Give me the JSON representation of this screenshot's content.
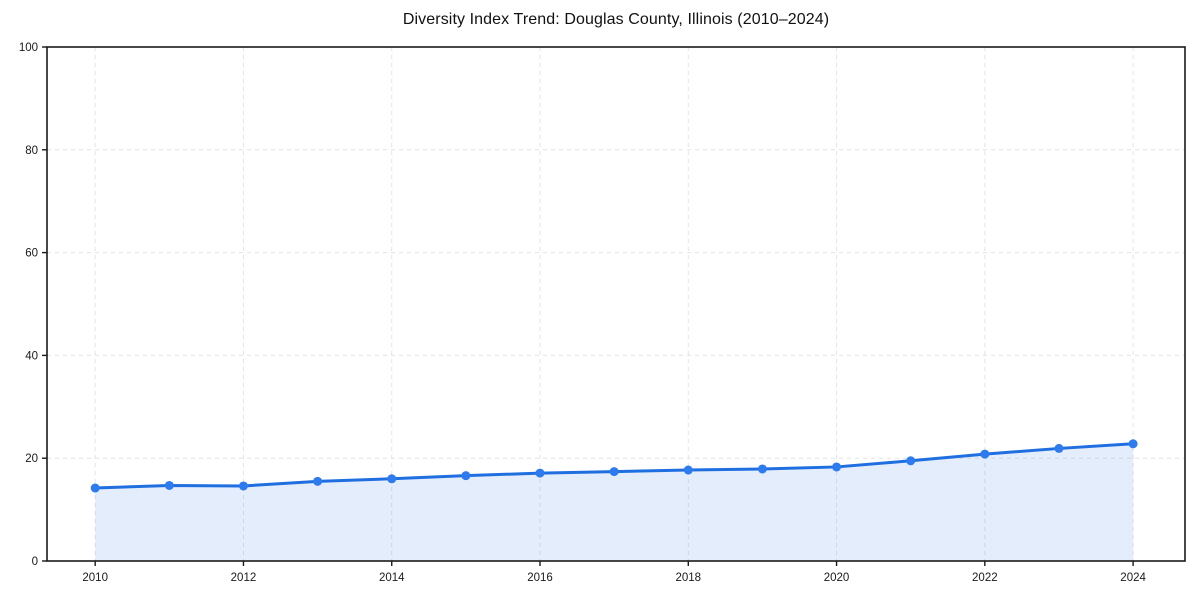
{
  "page": {
    "background_color": "#ffffff"
  },
  "chart_data": {
    "type": "line",
    "title": "Diversity Index Trend: Douglas County, Illinois (2010–2024)",
    "xlabel": "",
    "ylabel": "",
    "x": [
      2010,
      2011,
      2012,
      2013,
      2014,
      2015,
      2016,
      2017,
      2018,
      2019,
      2020,
      2021,
      2022,
      2023,
      2024
    ],
    "series": [
      {
        "name": "Diversity Index",
        "values": [
          14.2,
          14.7,
          14.6,
          15.5,
          16.0,
          16.6,
          17.1,
          17.4,
          17.7,
          17.9,
          18.3,
          19.5,
          20.8,
          21.9,
          22.8
        ]
      }
    ],
    "xlim": [
      2009.35,
      2024.7
    ],
    "ylim": [
      0,
      100
    ],
    "xticks": [
      2010,
      2012,
      2014,
      2016,
      2018,
      2020,
      2022,
      2024
    ],
    "yticks": [
      0,
      20,
      40,
      60,
      80,
      100
    ],
    "grid": "dashed",
    "legend_position": "none",
    "area_fill_under_line": true,
    "styles": {
      "line_color": "#1f6fe0",
      "marker_color": "#2e7bf0",
      "fill_color": "rgba(37, 110, 224, 0.12)",
      "grid_color": "#e3e3e3",
      "axis_color": "#1a1a1a",
      "tick_label_color": "#1a1a1a",
      "title_color": "#111111",
      "line_width": 3,
      "marker_radius": 4.5
    }
  }
}
